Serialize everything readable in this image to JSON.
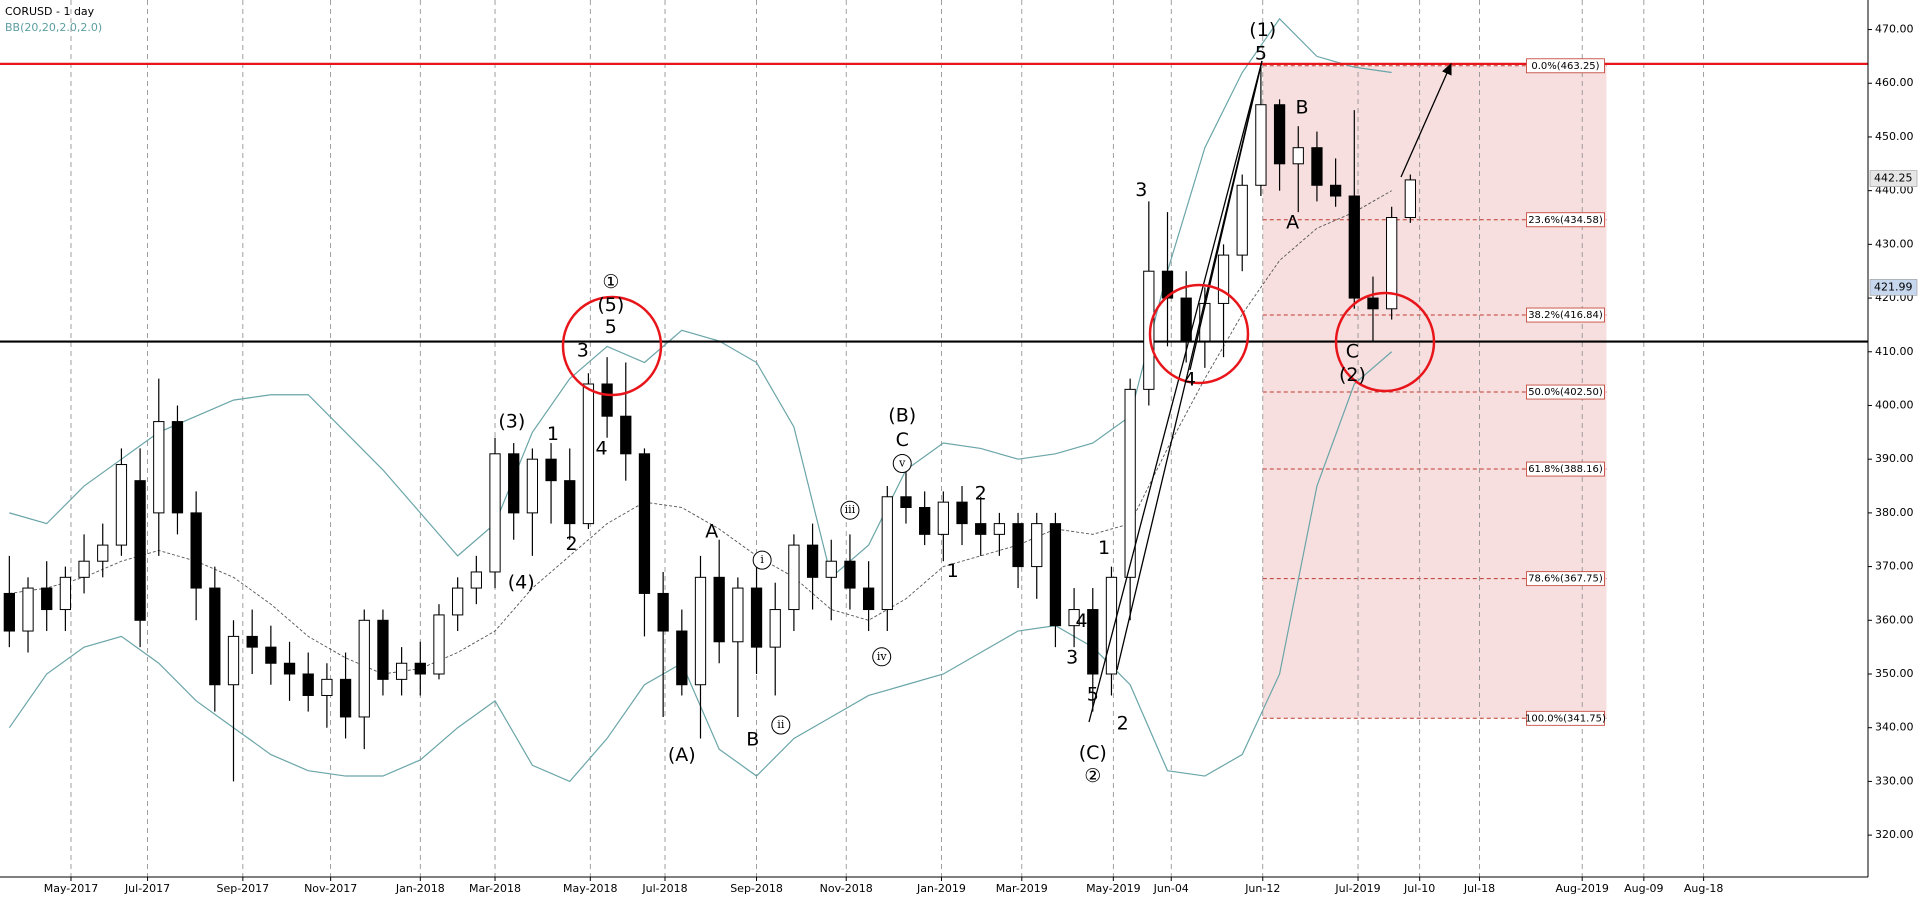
{
  "chart_data": {
    "type": "candlestick",
    "title": "CORUSD - 1 day",
    "subtitle": "BB(20,20,2.0,2.0)",
    "x": [
      0,
      1,
      2,
      3,
      4,
      5,
      6,
      7,
      8,
      9,
      10,
      11,
      12,
      13,
      14,
      15,
      16,
      17,
      18,
      19,
      20,
      21,
      22,
      23,
      24,
      25,
      26,
      27,
      28,
      29,
      30,
      31,
      32,
      33,
      34,
      35,
      36,
      37,
      38,
      39,
      40,
      41,
      42,
      43,
      44,
      45,
      46,
      47,
      48,
      49,
      50,
      51,
      52,
      53,
      54,
      55,
      56,
      57,
      58,
      59,
      60,
      61,
      62,
      63,
      64,
      65,
      66,
      67,
      68,
      69,
      70,
      71,
      72,
      73,
      74,
      75
    ],
    "open": [
      365,
      358,
      366,
      362,
      368,
      371,
      374,
      386,
      380,
      397,
      380,
      366,
      348,
      357,
      355,
      352,
      350,
      346,
      349,
      342,
      360,
      349,
      352,
      350,
      361,
      366,
      369,
      391,
      380,
      390,
      386,
      378,
      404,
      398,
      391,
      365,
      358,
      348,
      368,
      356,
      366,
      355,
      362,
      374,
      368,
      371,
      366,
      362,
      383,
      381,
      376,
      382,
      378,
      376,
      378,
      370,
      378,
      359,
      362,
      350,
      368,
      403,
      425,
      420,
      412,
      419,
      428,
      441,
      456,
      445,
      448,
      441,
      439,
      420,
      418,
      435
    ],
    "high": [
      372,
      368,
      371,
      370,
      376,
      378,
      392,
      392,
      405,
      400,
      384,
      370,
      360,
      362,
      359,
      356,
      354,
      352,
      354,
      362,
      362,
      355,
      356,
      363,
      368,
      372,
      394,
      393,
      392,
      393,
      392,
      406,
      409,
      408,
      392,
      369,
      362,
      372,
      375,
      368,
      370,
      367,
      376,
      378,
      375,
      376,
      371,
      385,
      388,
      384,
      384,
      385,
      383,
      380,
      380,
      380,
      380,
      366,
      366,
      370,
      405,
      438,
      436,
      425,
      422,
      430,
      443,
      463,
      457,
      452,
      451,
      446,
      455,
      424,
      437,
      443
    ],
    "low": [
      355,
      354,
      358,
      358,
      365,
      368,
      372,
      355,
      372,
      376,
      360,
      343,
      330,
      350,
      348,
      345,
      343,
      340,
      338,
      336,
      346,
      346,
      346,
      349,
      358,
      363,
      366,
      375,
      372,
      378,
      375,
      377,
      394,
      386,
      357,
      342,
      346,
      338,
      352,
      342,
      350,
      346,
      358,
      362,
      360,
      362,
      358,
      358,
      378,
      374,
      371,
      374,
      372,
      372,
      366,
      364,
      355,
      355,
      343,
      346,
      360,
      400,
      411,
      408,
      407,
      409,
      425,
      439,
      440,
      436,
      438,
      437,
      418,
      412,
      416,
      434
    ],
    "close": [
      358,
      366,
      362,
      368,
      371,
      374,
      389,
      360,
      397,
      380,
      366,
      348,
      357,
      355,
      352,
      350,
      346,
      349,
      342,
      360,
      349,
      352,
      350,
      361,
      366,
      369,
      391,
      380,
      390,
      386,
      378,
      404,
      398,
      391,
      365,
      358,
      348,
      368,
      356,
      366,
      355,
      362,
      374,
      368,
      371,
      366,
      362,
      383,
      381,
      376,
      382,
      378,
      376,
      378,
      370,
      378,
      359,
      362,
      350,
      368,
      403,
      425,
      420,
      412,
      419,
      428,
      441,
      456,
      445,
      448,
      441,
      439,
      420,
      418,
      435,
      442
    ],
    "up_color": "#ffffff",
    "down_color": "#000000",
    "xlim": [
      -0.5,
      99.5
    ],
    "ylim": [
      312.2,
      475.5
    ],
    "grid": "x",
    "xticks": [
      {
        "value": 3.3,
        "label": "May-2017"
      },
      {
        "value": 7.4,
        "label": "Jul-2017"
      },
      {
        "value": 12.5,
        "label": "Sep-2017"
      },
      {
        "value": 17.2,
        "label": "Nov-2017"
      },
      {
        "value": 22,
        "label": "Jan-2018"
      },
      {
        "value": 26,
        "label": "Mar-2018"
      },
      {
        "value": 31.1,
        "label": "May-2018"
      },
      {
        "value": 35.1,
        "label": "Jul-2018"
      },
      {
        "value": 40,
        "label": "Sep-2018"
      },
      {
        "value": 44.8,
        "label": "Nov-2018"
      },
      {
        "value": 49.9,
        "label": "Jan-2019"
      },
      {
        "value": 54.2,
        "label": "Mar-2019"
      },
      {
        "value": 59.1,
        "label": "May-2019"
      },
      {
        "value": 62.2,
        "label": "Jun-04"
      },
      {
        "value": 67.1,
        "label": "Jun-12"
      },
      {
        "value": 72.2,
        "label": "Jul-2019"
      },
      {
        "value": 75.5,
        "label": "Jul-10"
      },
      {
        "value": 78.7,
        "label": "Jul-18"
      },
      {
        "value": 84.2,
        "label": "Aug-2019"
      },
      {
        "value": 87.5,
        "label": "Aug-09"
      },
      {
        "value": 90.7,
        "label": "Aug-18"
      }
    ],
    "yticks": [
      {
        "value": 320,
        "label": "320.00"
      },
      {
        "value": 330,
        "label": "330.00"
      },
      {
        "value": 340,
        "label": "340.00"
      },
      {
        "value": 350,
        "label": "350.00"
      },
      {
        "value": 360,
        "label": "360.00"
      },
      {
        "value": 370,
        "label": "370.00"
      },
      {
        "value": 380,
        "label": "380.00"
      },
      {
        "value": 390,
        "label": "390.00"
      },
      {
        "value": 400,
        "label": "400.00"
      },
      {
        "value": 410,
        "label": "410.00"
      },
      {
        "value": 420,
        "label": "420.00"
      },
      {
        "value": 430,
        "label": "430.00"
      },
      {
        "value": 440,
        "label": "440.00"
      },
      {
        "value": 450,
        "label": "450.00"
      },
      {
        "value": 460,
        "label": "460.00"
      },
      {
        "value": 470,
        "label": "470.00"
      }
    ],
    "bands": {
      "color": "#6aa5a8",
      "x": [
        0,
        2,
        4,
        6,
        8,
        10,
        12,
        14,
        16,
        18,
        20,
        22,
        24,
        26,
        28,
        30,
        32,
        34,
        36,
        38,
        40,
        42,
        44,
        46,
        48,
        50,
        52,
        54,
        56,
        58,
        60,
        62,
        64,
        66,
        68,
        70,
        72,
        74
      ],
      "upper": [
        380,
        378,
        385,
        390,
        395,
        398,
        401,
        402,
        402,
        395,
        388,
        380,
        372,
        378,
        395,
        405,
        411,
        408,
        414,
        412,
        408,
        396,
        368,
        374,
        388,
        393,
        392,
        390,
        391,
        393,
        398,
        425,
        448,
        462,
        472,
        465,
        463,
        462
      ],
      "middle": [
        365,
        366,
        368,
        371,
        373,
        371,
        368,
        363,
        357,
        353,
        350,
        351,
        354,
        358,
        366,
        372,
        378,
        382,
        381,
        377,
        372,
        368,
        362,
        360,
        364,
        370,
        372,
        374,
        377,
        376,
        378,
        392,
        405,
        417,
        427,
        433,
        436,
        440
      ],
      "lower": [
        340,
        350,
        355,
        357,
        352,
        345,
        340,
        335,
        332,
        331,
        331,
        334,
        340,
        345,
        333,
        330,
        338,
        348,
        352,
        336,
        331,
        338,
        342,
        346,
        348,
        350,
        354,
        358,
        359,
        355,
        348,
        332,
        331,
        335,
        350,
        385,
        404,
        410
      ]
    },
    "levels": [
      {
        "value": 463.6,
        "color": "#e8161b"
      },
      {
        "value": 411.9,
        "color": "#000000"
      }
    ],
    "fib": {
      "xlim": [
        67.1,
        85.5
      ],
      "color": "#c0392b",
      "levels": [
        {
          "value": 463.25,
          "label": "0.0%(463.25)"
        },
        {
          "value": 434.58,
          "label": "23.6%(434.58)"
        },
        {
          "value": 416.84,
          "label": "38.2%(416.84)"
        },
        {
          "value": 402.5,
          "label": "50.0%(402.50)"
        },
        {
          "value": 388.16,
          "label": "61.8%(388.16)"
        },
        {
          "value": 367.75,
          "label": "78.6%(367.75)"
        },
        {
          "value": 341.75,
          "label": "100.0%(341.75)"
        }
      ]
    },
    "price_markers": [
      {
        "value": 442.25,
        "color": "#e6e6e6"
      },
      {
        "value": 421.99,
        "color": "#c7d7ee"
      }
    ],
    "annotations": [
      {
        "text": "(1)",
        "x": 67.1,
        "y": 469.8
      },
      {
        "text": "5",
        "x": 67,
        "y": 465.4
      },
      {
        "text": "3",
        "x": 60.6,
        "y": 440
      },
      {
        "text": "B",
        "x": 69.2,
        "y": 455.4
      },
      {
        "text": "A",
        "x": 68.7,
        "y": 434
      },
      {
        "text": "C",
        "x": 71.9,
        "y": 410
      },
      {
        "text": "(2)",
        "x": 71.9,
        "y": 405.6
      },
      {
        "text": "4",
        "x": 63.2,
        "y": 404.7
      },
      {
        "text": "①",
        "x": 32.2,
        "y": 422.9
      },
      {
        "text": "(5)",
        "x": 32.2,
        "y": 418.6
      },
      {
        "text": "5",
        "x": 32.2,
        "y": 414.5
      },
      {
        "text": "3",
        "x": 30.7,
        "y": 410.1
      },
      {
        "text": "4",
        "x": 31.7,
        "y": 391.9
      },
      {
        "text": "(3)",
        "x": 26.9,
        "y": 396.9
      },
      {
        "text": "1",
        "x": 29.1,
        "y": 394.6
      },
      {
        "text": "2",
        "x": 30.1,
        "y": 374.1
      },
      {
        "text": "(4)",
        "x": 27.4,
        "y": 366.9
      },
      {
        "text": "(B)",
        "x": 47.8,
        "y": 398
      },
      {
        "text": "C",
        "x": 47.8,
        "y": 393.5
      },
      {
        "text": "v",
        "x": 47.8,
        "y": 389.2,
        "circled": true
      },
      {
        "text": "A",
        "x": 37.6,
        "y": 376.4
      },
      {
        "text": "i",
        "x": 40.3,
        "y": 371.2,
        "circled": true
      },
      {
        "text": "iii",
        "x": 45,
        "y": 380.5,
        "circled": true
      },
      {
        "text": "2",
        "x": 52,
        "y": 383.5
      },
      {
        "text": "1",
        "x": 50.5,
        "y": 369.1
      },
      {
        "text": "iv",
        "x": 46.7,
        "y": 353.2,
        "circled": true
      },
      {
        "text": "B",
        "x": 39.8,
        "y": 337.7
      },
      {
        "text": "ii",
        "x": 41.3,
        "y": 340.5,
        "circled": true
      },
      {
        "text": "(A)",
        "x": 36,
        "y": 334.8
      },
      {
        "text": "4",
        "x": 57.4,
        "y": 359.8
      },
      {
        "text": "3",
        "x": 56.9,
        "y": 353
      },
      {
        "text": "1",
        "x": 58.6,
        "y": 373.4
      },
      {
        "text": "5",
        "x": 58,
        "y": 346.1
      },
      {
        "text": "(C)",
        "x": 58,
        "y": 335.2
      },
      {
        "text": "②",
        "x": 58,
        "y": 330.9
      },
      {
        "text": "2",
        "x": 59.6,
        "y": 340.7
      }
    ]
  }
}
